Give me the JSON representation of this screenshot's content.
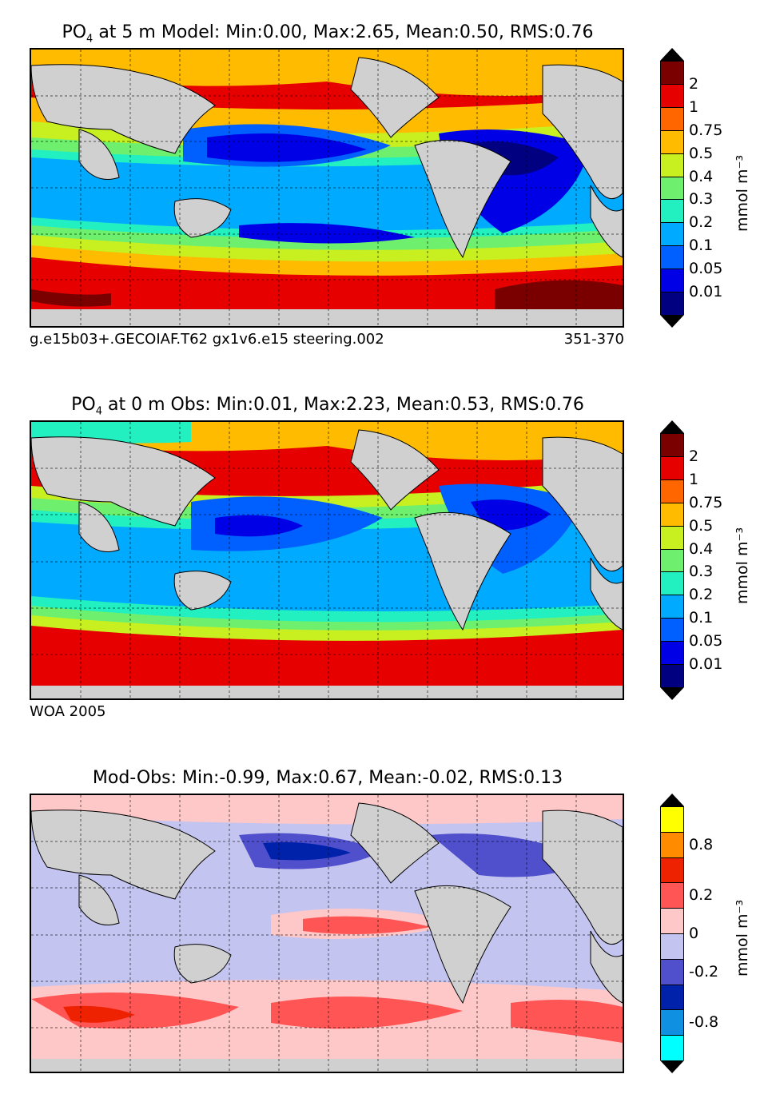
{
  "panels": [
    {
      "title_prefix": "PO",
      "title_sub": "4",
      "title_rest": "  at 5 m Model: Min:0.00, Max:2.65, Mean:0.50, RMS:0.76",
      "note_left": "g.e15b03+.GECOIAF.T62 gx1v6.e15 steering.002",
      "note_right": "351-370"
    },
    {
      "title_prefix": "PO",
      "title_sub": "4",
      "title_rest": "  at 0 m Obs: Min:0.01, Max:2.23, Mean:0.53, RMS:0.76",
      "note_left": "WOA 2005",
      "note_right": ""
    },
    {
      "title_prefix": "",
      "title_sub": "",
      "title_rest": "Mod-Obs: Min:-0.99, Max:0.67, Mean:-0.02, RMS:0.13",
      "note_left": "",
      "note_right": ""
    }
  ],
  "colorbar_main": {
    "colors": [
      "#7a0000",
      "#e60000",
      "#ff6600",
      "#ffbb00",
      "#c8f020",
      "#6ef06e",
      "#22f0c0",
      "#00aaff",
      "#0060ff",
      "#0000e6",
      "#000080"
    ],
    "ticks": [
      "2",
      "1",
      "0.75",
      "0.5",
      "0.4",
      "0.3",
      "0.2",
      "0.1",
      "0.05",
      "0.01"
    ],
    "unit": "mmol m⁻³"
  },
  "colorbar_diff": {
    "colors": [
      "#ffff00",
      "#ff8c00",
      "#ee2200",
      "#ff5555",
      "#ffc8c8",
      "#c4c4f0",
      "#5050cc",
      "#0022aa",
      "#1090e0",
      "#00ffff"
    ],
    "ticks": [
      "0.8",
      "0.2",
      "0",
      "-0.2",
      "-0.8"
    ],
    "unit": "mmol m⁻³"
  }
}
